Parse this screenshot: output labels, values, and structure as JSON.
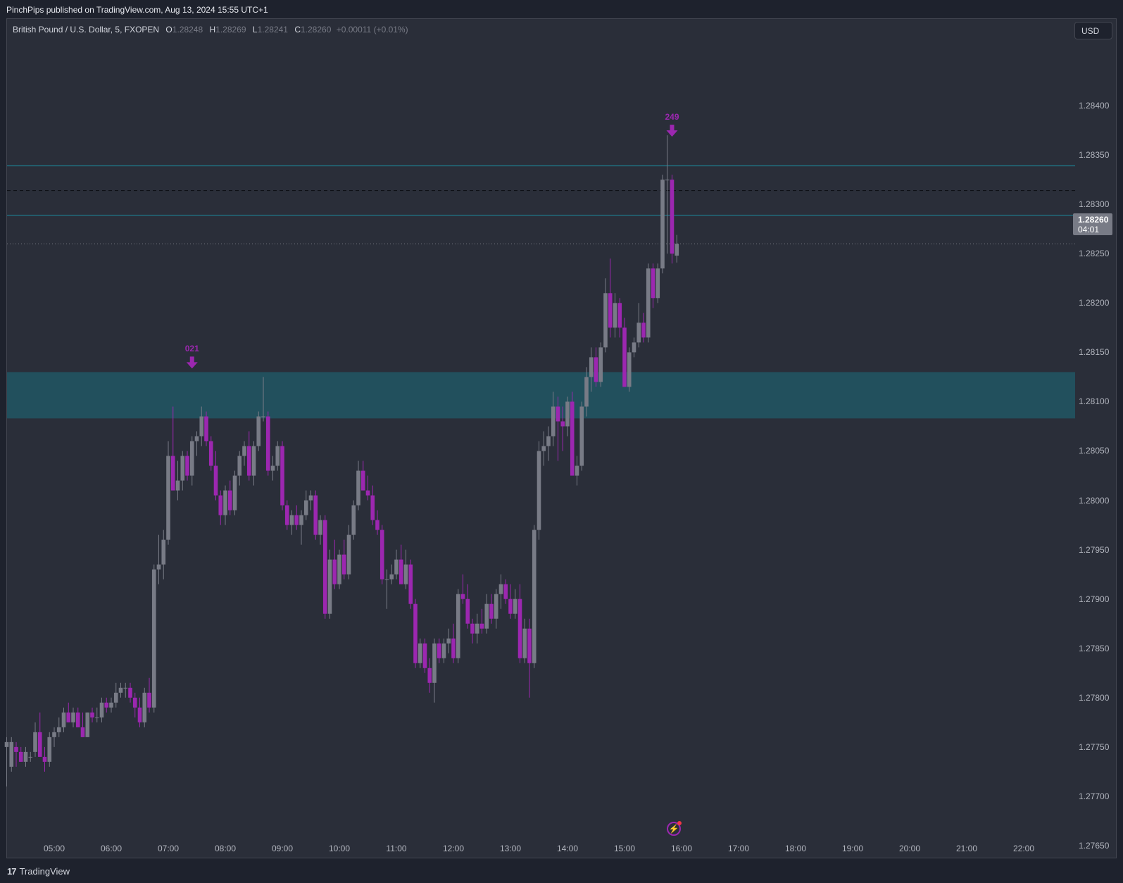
{
  "header": {
    "publish_note": "PinchPips published on TradingView.com, Aug 13, 2024 15:55 UTC+1"
  },
  "legend": {
    "symbol": "British Pound / U.S. Dollar, 5, FXOPEN",
    "o_label": "O",
    "o_value": "1.28248",
    "h_label": "H",
    "h_value": "1.28269",
    "l_label": "L",
    "l_value": "1.28241",
    "c_label": "C",
    "c_value": "1.28260",
    "change": "+0.00011 (+0.01%)"
  },
  "currency_button": "USD",
  "last_price": {
    "price": "1.28260",
    "countdown": "04:01"
  },
  "markers": [
    {
      "label": "021",
      "time": "07:25",
      "price": 1.2813
    },
    {
      "label": "249",
      "time": "15:50",
      "price": 1.28365
    }
  ],
  "colors": {
    "up": "#787b86",
    "down": "#9c27b0",
    "zone": "#22505d",
    "level_line": "#1e7a8c",
    "background": "#2a2e39"
  },
  "footer": {
    "brand": "TradingView",
    "brand_icon": "tv-logo-icon"
  },
  "chart_data": {
    "type": "candlestick",
    "symbol": "GBPUSD",
    "timeframe": "5",
    "y_ticks": [
      "1.28400",
      "1.28350",
      "1.28300",
      "1.28250",
      "1.28200",
      "1.28150",
      "1.28100",
      "1.28050",
      "1.28000",
      "1.27950",
      "1.27900",
      "1.27850",
      "1.27800",
      "1.27750",
      "1.27700",
      "1.27650"
    ],
    "x_ticks": [
      "05:00",
      "06:00",
      "07:00",
      "08:00",
      "09:00",
      "10:00",
      "11:00",
      "12:00",
      "13:00",
      "14:00",
      "15:00",
      "16:00",
      "17:00",
      "18:00",
      "19:00",
      "20:00",
      "21:00",
      "22:00"
    ],
    "ylim": [
      1.2764,
      1.2845
    ],
    "zone": {
      "top": 1.2813,
      "bottom": 1.28083
    },
    "levels": [
      {
        "price": 1.28339,
        "style": "solid"
      },
      {
        "price": 1.28314,
        "style": "dashed"
      },
      {
        "price": 1.28289,
        "style": "solid"
      },
      {
        "price": 1.2826,
        "style": "dotted"
      }
    ],
    "candles": [
      {
        "t": "04:10",
        "o": 1.2775,
        "h": 1.2776,
        "l": 1.2771,
        "c": 1.27755
      },
      {
        "t": "04:15",
        "o": 1.2773,
        "h": 1.2776,
        "l": 1.27725,
        "c": 1.27755
      },
      {
        "t": "04:20",
        "o": 1.2775,
        "h": 1.27755,
        "l": 1.2773,
        "c": 1.27745
      },
      {
        "t": "04:25",
        "o": 1.27745,
        "h": 1.2775,
        "l": 1.27735,
        "c": 1.27735
      },
      {
        "t": "04:30",
        "o": 1.27735,
        "h": 1.2775,
        "l": 1.2773,
        "c": 1.27745
      },
      {
        "t": "04:35",
        "o": 1.2774,
        "h": 1.27745,
        "l": 1.27735,
        "c": 1.2774
      },
      {
        "t": "04:40",
        "o": 1.27745,
        "h": 1.27775,
        "l": 1.2774,
        "c": 1.27765
      },
      {
        "t": "04:45",
        "o": 1.27765,
        "h": 1.27785,
        "l": 1.2774,
        "c": 1.2774
      },
      {
        "t": "04:50",
        "o": 1.2774,
        "h": 1.2775,
        "l": 1.27725,
        "c": 1.27735
      },
      {
        "t": "04:55",
        "o": 1.27735,
        "h": 1.27765,
        "l": 1.2773,
        "c": 1.2776
      },
      {
        "t": "05:00",
        "o": 1.2776,
        "h": 1.2777,
        "l": 1.2775,
        "c": 1.27765
      },
      {
        "t": "05:05",
        "o": 1.27765,
        "h": 1.2778,
        "l": 1.2776,
        "c": 1.2777
      },
      {
        "t": "05:10",
        "o": 1.2777,
        "h": 1.2779,
        "l": 1.27765,
        "c": 1.27785
      },
      {
        "t": "05:15",
        "o": 1.27785,
        "h": 1.27795,
        "l": 1.27775,
        "c": 1.27775
      },
      {
        "t": "05:20",
        "o": 1.27775,
        "h": 1.2779,
        "l": 1.2777,
        "c": 1.27785
      },
      {
        "t": "05:25",
        "o": 1.27785,
        "h": 1.2779,
        "l": 1.2777,
        "c": 1.2777
      },
      {
        "t": "05:30",
        "o": 1.2777,
        "h": 1.27785,
        "l": 1.2776,
        "c": 1.2776
      },
      {
        "t": "05:35",
        "o": 1.2776,
        "h": 1.27785,
        "l": 1.2776,
        "c": 1.27785
      },
      {
        "t": "05:40",
        "o": 1.27785,
        "h": 1.2779,
        "l": 1.27775,
        "c": 1.2778
      },
      {
        "t": "05:45",
        "o": 1.2778,
        "h": 1.2779,
        "l": 1.27775,
        "c": 1.2778
      },
      {
        "t": "05:50",
        "o": 1.2778,
        "h": 1.278,
        "l": 1.27775,
        "c": 1.27795
      },
      {
        "t": "05:55",
        "o": 1.27795,
        "h": 1.278,
        "l": 1.27785,
        "c": 1.2779
      },
      {
        "t": "06:00",
        "o": 1.2779,
        "h": 1.278,
        "l": 1.27785,
        "c": 1.27795
      },
      {
        "t": "06:05",
        "o": 1.27795,
        "h": 1.27815,
        "l": 1.2779,
        "c": 1.27805
      },
      {
        "t": "06:10",
        "o": 1.27805,
        "h": 1.27815,
        "l": 1.278,
        "c": 1.2781
      },
      {
        "t": "06:15",
        "o": 1.2781,
        "h": 1.27815,
        "l": 1.278,
        "c": 1.2781
      },
      {
        "t": "06:20",
        "o": 1.2781,
        "h": 1.27815,
        "l": 1.27795,
        "c": 1.278
      },
      {
        "t": "06:25",
        "o": 1.278,
        "h": 1.27805,
        "l": 1.2778,
        "c": 1.2779
      },
      {
        "t": "06:30",
        "o": 1.2779,
        "h": 1.278,
        "l": 1.2777,
        "c": 1.27775
      },
      {
        "t": "06:35",
        "o": 1.27775,
        "h": 1.2781,
        "l": 1.2777,
        "c": 1.27805
      },
      {
        "t": "06:40",
        "o": 1.27805,
        "h": 1.2782,
        "l": 1.27785,
        "c": 1.2779
      },
      {
        "t": "06:45",
        "o": 1.2779,
        "h": 1.27935,
        "l": 1.27785,
        "c": 1.2793
      },
      {
        "t": "06:50",
        "o": 1.2793,
        "h": 1.27965,
        "l": 1.27915,
        "c": 1.27935
      },
      {
        "t": "06:55",
        "o": 1.27935,
        "h": 1.2797,
        "l": 1.2792,
        "c": 1.2796
      },
      {
        "t": "07:00",
        "o": 1.2796,
        "h": 1.2806,
        "l": 1.27955,
        "c": 1.28045
      },
      {
        "t": "07:05",
        "o": 1.28045,
        "h": 1.28095,
        "l": 1.2801,
        "c": 1.2801
      },
      {
        "t": "07:10",
        "o": 1.2801,
        "h": 1.2804,
        "l": 1.28,
        "c": 1.2802
      },
      {
        "t": "07:15",
        "o": 1.2802,
        "h": 1.2805,
        "l": 1.2801,
        "c": 1.28045
      },
      {
        "t": "07:20",
        "o": 1.28045,
        "h": 1.2805,
        "l": 1.2802,
        "c": 1.28025
      },
      {
        "t": "07:25",
        "o": 1.28025,
        "h": 1.28065,
        "l": 1.28015,
        "c": 1.2806
      },
      {
        "t": "07:30",
        "o": 1.2806,
        "h": 1.2807,
        "l": 1.28045,
        "c": 1.28065
      },
      {
        "t": "07:35",
        "o": 1.28065,
        "h": 1.28095,
        "l": 1.28055,
        "c": 1.28085
      },
      {
        "t": "07:40",
        "o": 1.28085,
        "h": 1.2809,
        "l": 1.28055,
        "c": 1.2806
      },
      {
        "t": "07:45",
        "o": 1.2806,
        "h": 1.28065,
        "l": 1.2803,
        "c": 1.28035
      },
      {
        "t": "07:50",
        "o": 1.28035,
        "h": 1.2805,
        "l": 1.28,
        "c": 1.28005
      },
      {
        "t": "07:55",
        "o": 1.28005,
        "h": 1.2801,
        "l": 1.27975,
        "c": 1.27985
      },
      {
        "t": "08:00",
        "o": 1.27985,
        "h": 1.28015,
        "l": 1.27975,
        "c": 1.2801
      },
      {
        "t": "08:05",
        "o": 1.2801,
        "h": 1.2802,
        "l": 1.27985,
        "c": 1.2799
      },
      {
        "t": "08:10",
        "o": 1.2799,
        "h": 1.2803,
        "l": 1.27985,
        "c": 1.28025
      },
      {
        "t": "08:15",
        "o": 1.28025,
        "h": 1.2805,
        "l": 1.28015,
        "c": 1.28045
      },
      {
        "t": "08:20",
        "o": 1.28045,
        "h": 1.2806,
        "l": 1.28035,
        "c": 1.28055
      },
      {
        "t": "08:25",
        "o": 1.28055,
        "h": 1.2807,
        "l": 1.2802,
        "c": 1.28025
      },
      {
        "t": "08:30",
        "o": 1.28025,
        "h": 1.2806,
        "l": 1.28015,
        "c": 1.28055
      },
      {
        "t": "08:35",
        "o": 1.28055,
        "h": 1.2809,
        "l": 1.2805,
        "c": 1.28085
      },
      {
        "t": "08:40",
        "o": 1.28085,
        "h": 1.28125,
        "l": 1.2808,
        "c": 1.28085
      },
      {
        "t": "08:45",
        "o": 1.28085,
        "h": 1.2809,
        "l": 1.28025,
        "c": 1.2803
      },
      {
        "t": "08:50",
        "o": 1.2803,
        "h": 1.28045,
        "l": 1.2802,
        "c": 1.28035
      },
      {
        "t": "08:55",
        "o": 1.28035,
        "h": 1.2806,
        "l": 1.2803,
        "c": 1.28055
      },
      {
        "t": "09:00",
        "o": 1.28055,
        "h": 1.2806,
        "l": 1.2799,
        "c": 1.27995
      },
      {
        "t": "09:05",
        "o": 1.27995,
        "h": 1.28,
        "l": 1.2797,
        "c": 1.27975
      },
      {
        "t": "09:10",
        "o": 1.27975,
        "h": 1.2799,
        "l": 1.27965,
        "c": 1.27985
      },
      {
        "t": "09:15",
        "o": 1.27985,
        "h": 1.27995,
        "l": 1.2797,
        "c": 1.27975
      },
      {
        "t": "09:20",
        "o": 1.27975,
        "h": 1.2799,
        "l": 1.27955,
        "c": 1.27985
      },
      {
        "t": "09:25",
        "o": 1.27985,
        "h": 1.2801,
        "l": 1.2798,
        "c": 1.28
      },
      {
        "t": "09:30",
        "o": 1.28,
        "h": 1.2801,
        "l": 1.2799,
        "c": 1.28005
      },
      {
        "t": "09:35",
        "o": 1.28005,
        "h": 1.2801,
        "l": 1.2796,
        "c": 1.27965
      },
      {
        "t": "09:40",
        "o": 1.27965,
        "h": 1.27985,
        "l": 1.27955,
        "c": 1.2798
      },
      {
        "t": "09:45",
        "o": 1.2798,
        "h": 1.27985,
        "l": 1.2788,
        "c": 1.27885
      },
      {
        "t": "09:50",
        "o": 1.27885,
        "h": 1.2795,
        "l": 1.2788,
        "c": 1.2794
      },
      {
        "t": "09:55",
        "o": 1.2794,
        "h": 1.2796,
        "l": 1.2791,
        "c": 1.27915
      },
      {
        "t": "10:00",
        "o": 1.27915,
        "h": 1.2795,
        "l": 1.2791,
        "c": 1.27945
      },
      {
        "t": "10:05",
        "o": 1.27945,
        "h": 1.2796,
        "l": 1.2792,
        "c": 1.27925
      },
      {
        "t": "10:10",
        "o": 1.27925,
        "h": 1.27975,
        "l": 1.2792,
        "c": 1.27965
      },
      {
        "t": "10:15",
        "o": 1.27965,
        "h": 1.28,
        "l": 1.2796,
        "c": 1.27995
      },
      {
        "t": "10:20",
        "o": 1.27995,
        "h": 1.2804,
        "l": 1.2799,
        "c": 1.2803
      },
      {
        "t": "10:25",
        "o": 1.2803,
        "h": 1.2804,
        "l": 1.2801,
        "c": 1.2801
      },
      {
        "t": "10:30",
        "o": 1.2801,
        "h": 1.28025,
        "l": 1.28,
        "c": 1.28005
      },
      {
        "t": "10:35",
        "o": 1.28005,
        "h": 1.28015,
        "l": 1.27975,
        "c": 1.2798
      },
      {
        "t": "10:40",
        "o": 1.2798,
        "h": 1.2799,
        "l": 1.27965,
        "c": 1.2797
      },
      {
        "t": "10:45",
        "o": 1.2797,
        "h": 1.27975,
        "l": 1.27915,
        "c": 1.2792
      },
      {
        "t": "10:50",
        "o": 1.2792,
        "h": 1.2793,
        "l": 1.2789,
        "c": 1.2792
      },
      {
        "t": "10:55",
        "o": 1.2792,
        "h": 1.27935,
        "l": 1.27915,
        "c": 1.27925
      },
      {
        "t": "11:00",
        "o": 1.27925,
        "h": 1.2795,
        "l": 1.2792,
        "c": 1.2794
      },
      {
        "t": "11:05",
        "o": 1.2794,
        "h": 1.27955,
        "l": 1.27915,
        "c": 1.27915
      },
      {
        "t": "11:10",
        "o": 1.27915,
        "h": 1.2795,
        "l": 1.2791,
        "c": 1.27935
      },
      {
        "t": "11:15",
        "o": 1.27935,
        "h": 1.2794,
        "l": 1.2789,
        "c": 1.27895
      },
      {
        "t": "11:20",
        "o": 1.27895,
        "h": 1.279,
        "l": 1.2783,
        "c": 1.27835
      },
      {
        "t": "11:25",
        "o": 1.27835,
        "h": 1.2786,
        "l": 1.2783,
        "c": 1.27855
      },
      {
        "t": "11:30",
        "o": 1.27855,
        "h": 1.2786,
        "l": 1.27825,
        "c": 1.2783
      },
      {
        "t": "11:35",
        "o": 1.2783,
        "h": 1.2784,
        "l": 1.27805,
        "c": 1.27815
      },
      {
        "t": "11:40",
        "o": 1.27815,
        "h": 1.2786,
        "l": 1.27795,
        "c": 1.27855
      },
      {
        "t": "11:45",
        "o": 1.27855,
        "h": 1.2786,
        "l": 1.27835,
        "c": 1.2784
      },
      {
        "t": "11:50",
        "o": 1.2784,
        "h": 1.2786,
        "l": 1.27835,
        "c": 1.27855
      },
      {
        "t": "11:55",
        "o": 1.27855,
        "h": 1.2787,
        "l": 1.27845,
        "c": 1.2786
      },
      {
        "t": "12:00",
        "o": 1.2786,
        "h": 1.27875,
        "l": 1.27835,
        "c": 1.2784
      },
      {
        "t": "12:05",
        "o": 1.2784,
        "h": 1.2791,
        "l": 1.27835,
        "c": 1.27905
      },
      {
        "t": "12:10",
        "o": 1.27905,
        "h": 1.27925,
        "l": 1.27895,
        "c": 1.279
      },
      {
        "t": "12:15",
        "o": 1.279,
        "h": 1.27915,
        "l": 1.2787,
        "c": 1.27875
      },
      {
        "t": "12:20",
        "o": 1.27875,
        "h": 1.2788,
        "l": 1.27855,
        "c": 1.27865
      },
      {
        "t": "12:25",
        "o": 1.27865,
        "h": 1.27885,
        "l": 1.27855,
        "c": 1.27875
      },
      {
        "t": "12:30",
        "o": 1.27875,
        "h": 1.2789,
        "l": 1.27865,
        "c": 1.2787
      },
      {
        "t": "12:35",
        "o": 1.2787,
        "h": 1.27905,
        "l": 1.27865,
        "c": 1.27895
      },
      {
        "t": "12:40",
        "o": 1.27895,
        "h": 1.27905,
        "l": 1.27875,
        "c": 1.2788
      },
      {
        "t": "12:45",
        "o": 1.2788,
        "h": 1.2791,
        "l": 1.2787,
        "c": 1.27905
      },
      {
        "t": "12:50",
        "o": 1.27905,
        "h": 1.27925,
        "l": 1.2789,
        "c": 1.27915
      },
      {
        "t": "12:55",
        "o": 1.27915,
        "h": 1.2792,
        "l": 1.27895,
        "c": 1.279
      },
      {
        "t": "13:00",
        "o": 1.279,
        "h": 1.27915,
        "l": 1.2788,
        "c": 1.27885
      },
      {
        "t": "13:05",
        "o": 1.27885,
        "h": 1.2791,
        "l": 1.2788,
        "c": 1.279
      },
      {
        "t": "13:10",
        "o": 1.279,
        "h": 1.27915,
        "l": 1.27835,
        "c": 1.2784
      },
      {
        "t": "13:15",
        "o": 1.2784,
        "h": 1.2788,
        "l": 1.27835,
        "c": 1.2787
      },
      {
        "t": "13:20",
        "o": 1.2787,
        "h": 1.2788,
        "l": 1.278,
        "c": 1.27835
      },
      {
        "t": "13:25",
        "o": 1.27835,
        "h": 1.27975,
        "l": 1.2783,
        "c": 1.2797
      },
      {
        "t": "13:30",
        "o": 1.2797,
        "h": 1.2806,
        "l": 1.2796,
        "c": 1.2805
      },
      {
        "t": "13:35",
        "o": 1.2805,
        "h": 1.2807,
        "l": 1.28035,
        "c": 1.28055
      },
      {
        "t": "13:40",
        "o": 1.28055,
        "h": 1.28075,
        "l": 1.2804,
        "c": 1.28065
      },
      {
        "t": "13:45",
        "o": 1.28065,
        "h": 1.2811,
        "l": 1.28055,
        "c": 1.28095
      },
      {
        "t": "13:50",
        "o": 1.28095,
        "h": 1.28105,
        "l": 1.2804,
        "c": 1.2808
      },
      {
        "t": "13:55",
        "o": 1.2808,
        "h": 1.28095,
        "l": 1.2805,
        "c": 1.28075
      },
      {
        "t": "14:00",
        "o": 1.28075,
        "h": 1.28105,
        "l": 1.28065,
        "c": 1.281
      },
      {
        "t": "14:05",
        "o": 1.281,
        "h": 1.2811,
        "l": 1.28025,
        "c": 1.28025
      },
      {
        "t": "14:10",
        "o": 1.28025,
        "h": 1.28045,
        "l": 1.28015,
        "c": 1.28035
      },
      {
        "t": "14:15",
        "o": 1.28035,
        "h": 1.281,
        "l": 1.2803,
        "c": 1.28095
      },
      {
        "t": "14:20",
        "o": 1.28095,
        "h": 1.28135,
        "l": 1.28085,
        "c": 1.28125
      },
      {
        "t": "14:25",
        "o": 1.28125,
        "h": 1.28155,
        "l": 1.2811,
        "c": 1.28145
      },
      {
        "t": "14:30",
        "o": 1.28145,
        "h": 1.28155,
        "l": 1.28115,
        "c": 1.2812
      },
      {
        "t": "14:35",
        "o": 1.2812,
        "h": 1.2816,
        "l": 1.28115,
        "c": 1.28155
      },
      {
        "t": "14:40",
        "o": 1.28155,
        "h": 1.28225,
        "l": 1.2815,
        "c": 1.2821
      },
      {
        "t": "14:45",
        "o": 1.2821,
        "h": 1.28245,
        "l": 1.28165,
        "c": 1.28175
      },
      {
        "t": "14:50",
        "o": 1.28175,
        "h": 1.2821,
        "l": 1.28165,
        "c": 1.282
      },
      {
        "t": "14:55",
        "o": 1.282,
        "h": 1.28205,
        "l": 1.28165,
        "c": 1.28175
      },
      {
        "t": "15:00",
        "o": 1.28175,
        "h": 1.28185,
        "l": 1.28115,
        "c": 1.28115
      },
      {
        "t": "15:05",
        "o": 1.28115,
        "h": 1.28155,
        "l": 1.2811,
        "c": 1.2815
      },
      {
        "t": "15:10",
        "o": 1.2815,
        "h": 1.28165,
        "l": 1.28145,
        "c": 1.2816
      },
      {
        "t": "15:15",
        "o": 1.2816,
        "h": 1.282,
        "l": 1.28155,
        "c": 1.2818
      },
      {
        "t": "15:20",
        "o": 1.2818,
        "h": 1.2819,
        "l": 1.2816,
        "c": 1.28165
      },
      {
        "t": "15:25",
        "o": 1.28165,
        "h": 1.2824,
        "l": 1.2816,
        "c": 1.28235
      },
      {
        "t": "15:30",
        "o": 1.28235,
        "h": 1.2824,
        "l": 1.28195,
        "c": 1.28205
      },
      {
        "t": "15:35",
        "o": 1.28205,
        "h": 1.2824,
        "l": 1.282,
        "c": 1.28235
      },
      {
        "t": "15:40",
        "o": 1.28235,
        "h": 1.2833,
        "l": 1.2823,
        "c": 1.28325
      },
      {
        "t": "15:45",
        "o": 1.28325,
        "h": 1.2837,
        "l": 1.2825,
        "c": 1.28325
      },
      {
        "t": "15:50",
        "o": 1.28325,
        "h": 1.2833,
        "l": 1.2824,
        "c": 1.2825
      },
      {
        "t": "15:55",
        "o": 1.28248,
        "h": 1.28269,
        "l": 1.28241,
        "c": 1.2826
      }
    ]
  }
}
